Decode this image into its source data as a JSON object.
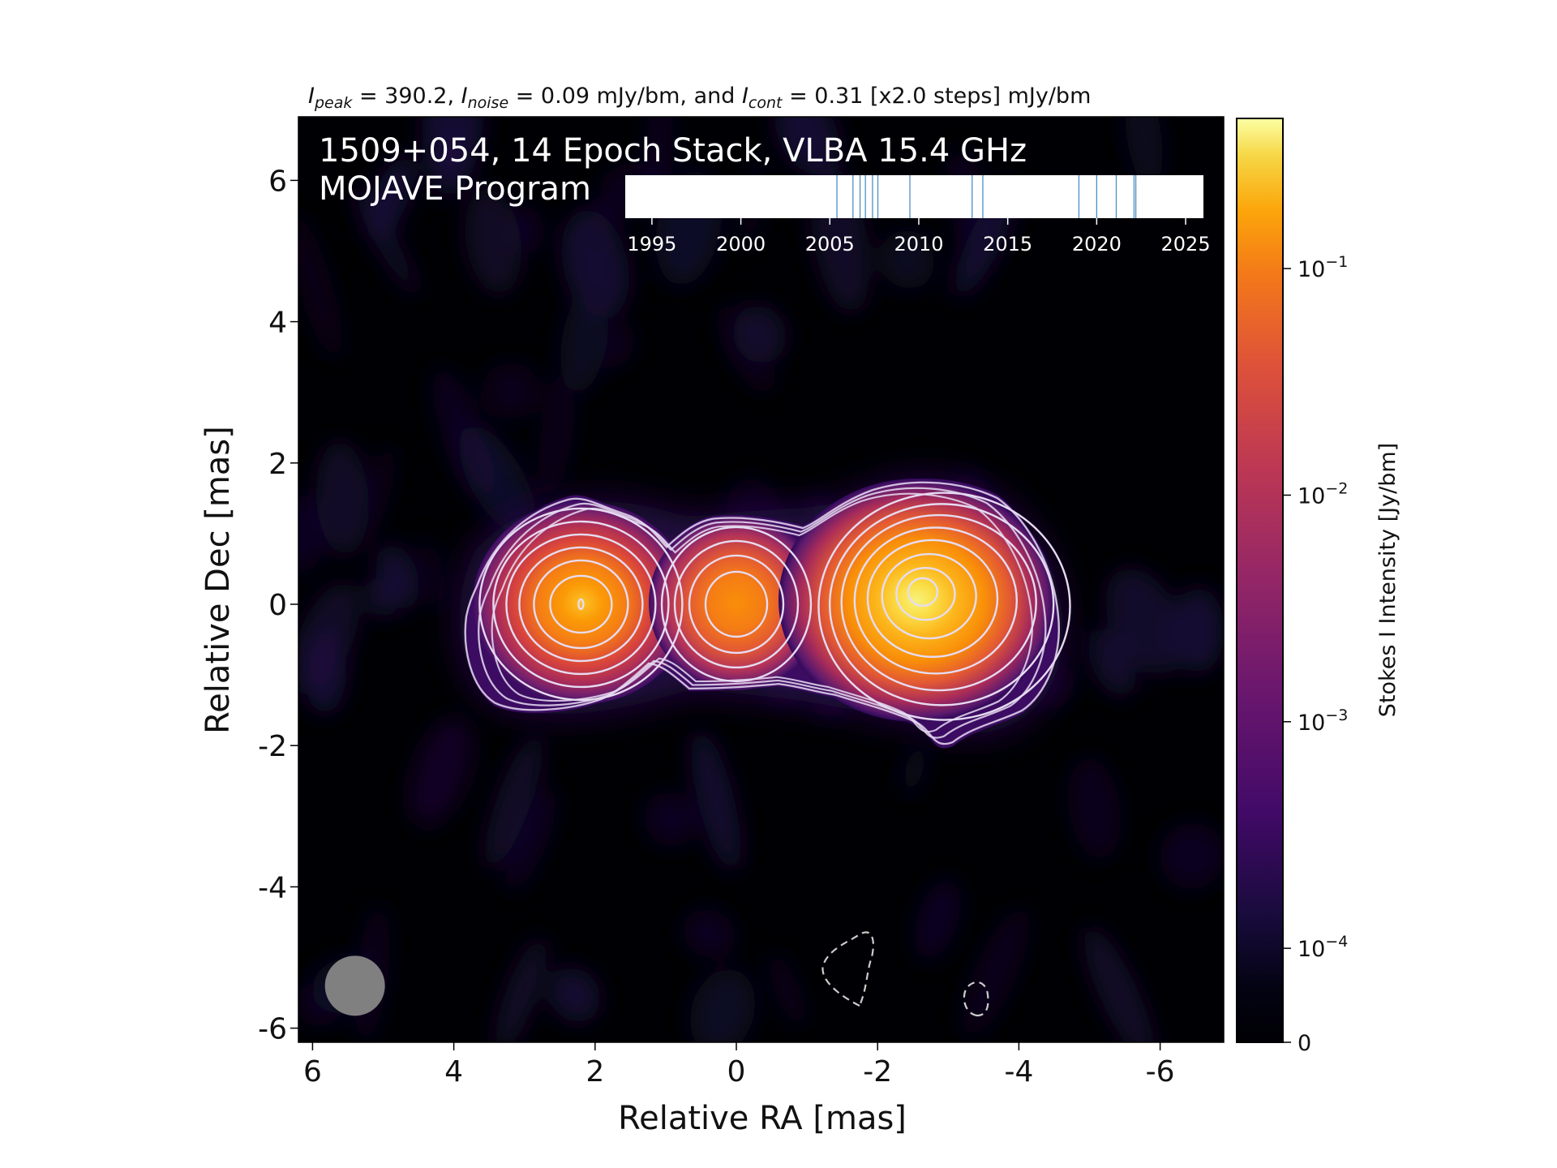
{
  "chart_data": {
    "type": "heatmap",
    "title": "I_peak = 390.2, I_noise = 0.09 mJy/bm, and I_cont = 0.31 [x2.0 steps] mJy/bm",
    "title_parts": {
      "peak_label": "peak",
      "peak_value": " = 390.2, ",
      "noise_label": "noise",
      "noise_value": " = 0.09 mJy/bm, and ",
      "cont_label": "cont",
      "cont_value": " = 0.31 [x2.0 steps] mJy/bm",
      "symbol": "I"
    },
    "annotation_line1": "1509+054, 14 Epoch Stack, VLBA 15.4 GHz",
    "annotation_line2": "MOJAVE Program",
    "xlabel": "Relative RA [mas]",
    "ylabel": "Relative Dec [mas]",
    "xlim": [
      6.2,
      -6.9
    ],
    "ylim": [
      -6.2,
      6.9
    ],
    "x_ticks": [
      6,
      4,
      2,
      0,
      -2,
      -4,
      -6
    ],
    "x_tick_labels": [
      "6",
      "4",
      "2",
      "0",
      "-2",
      "-4",
      "-6"
    ],
    "y_ticks": [
      6,
      4,
      2,
      0,
      -2,
      -4,
      -6
    ],
    "y_tick_labels": [
      "6",
      "4",
      "2",
      "0",
      "-2",
      "-4",
      "-6"
    ],
    "components": [
      {
        "x": 2.2,
        "y": 0.0,
        "peak_jy": 0.07
      },
      {
        "x": 0.0,
        "y": 0.0,
        "peak_jy": 0.045
      },
      {
        "x": -2.6,
        "y": 0.2,
        "peak_jy": 0.39
      }
    ],
    "negative_contours": [
      {
        "x": -1.8,
        "y": -5.3
      },
      {
        "x": -3.4,
        "y": -5.6
      }
    ],
    "beam": {
      "x": 5.4,
      "y": -5.4,
      "major_mas": 0.85
    },
    "epoch_timeline": {
      "xlim": [
        1993.5,
        2026.0
      ],
      "ticks": [
        1995,
        2000,
        2005,
        2010,
        2015,
        2020,
        2025
      ],
      "tick_labels": [
        "1995",
        "2000",
        "2005",
        "2010",
        "2015",
        "2020",
        "2025"
      ],
      "epochs": [
        2005.4,
        2006.3,
        2006.7,
        2007.0,
        2007.4,
        2007.7,
        2009.5,
        2013.0,
        2013.6,
        2019.0,
        2020.0,
        2021.1,
        2022.1,
        2022.2
      ]
    },
    "colorbar": {
      "label": "Stokes I Intensity [Jy/bm]",
      "scale": "log",
      "colormap": "inferno",
      "ticks": [
        {
          "value": 0.1,
          "base": "10",
          "exp": "−1"
        },
        {
          "value": 0.01,
          "base": "10",
          "exp": "−2"
        },
        {
          "value": 0.001,
          "base": "10",
          "exp": "−3"
        },
        {
          "value": 0.0001,
          "base": "10",
          "exp": "−4"
        },
        {
          "value": 0,
          "label": "0"
        }
      ]
    },
    "colors": {
      "contour": "#e6dcf2",
      "negative_contour": "#cccccc",
      "beam": "#808080",
      "epoch_line": "#4f8fc4",
      "background": "#000004"
    }
  }
}
